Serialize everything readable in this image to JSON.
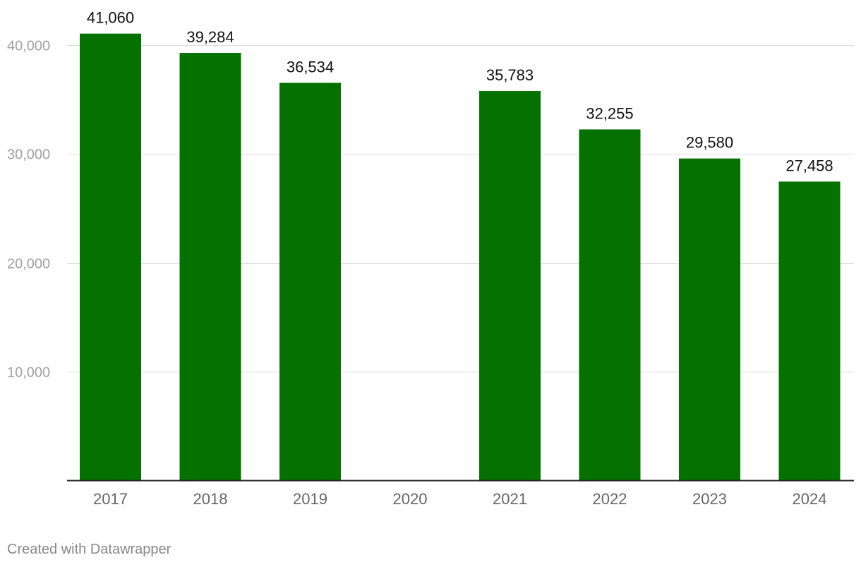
{
  "chart_data": {
    "type": "bar",
    "categories": [
      "2017",
      "2018",
      "2019",
      "2020",
      "2021",
      "2022",
      "2023",
      "2024"
    ],
    "values": [
      41060,
      39284,
      36534,
      null,
      35783,
      32255,
      29580,
      27458
    ],
    "value_labels": [
      "41,060",
      "39,284",
      "36,534",
      "",
      "35,783",
      "32,255",
      "29,580",
      "27,458"
    ],
    "y_ticks": [
      10000,
      20000,
      30000,
      40000
    ],
    "y_tick_labels": [
      "10,000",
      "20,000",
      "30,000",
      "40,000"
    ],
    "ylim": [
      0,
      44000
    ],
    "grid": true,
    "bar_color": "#047100",
    "title": "",
    "xlabel": "",
    "ylabel": ""
  },
  "footer": {
    "credit": "Created with Datawrapper"
  }
}
